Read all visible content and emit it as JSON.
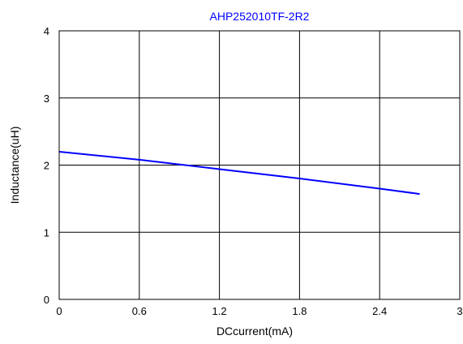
{
  "chart_data": {
    "type": "line",
    "title": "AHP252010TF-2R2",
    "xlabel": "DCcurrent(mA)",
    "ylabel": "Inductance(uH)",
    "xlim": [
      0,
      3
    ],
    "ylim": [
      0,
      4
    ],
    "xticks": [
      0,
      0.6,
      1.2,
      1.8,
      2.4,
      3
    ],
    "xtick_labels": [
      "0",
      "0.6",
      "1.2",
      "1.8",
      "2.4",
      "3"
    ],
    "yticks": [
      0,
      1,
      2,
      3,
      4
    ],
    "ytick_labels": [
      "0",
      "1",
      "2",
      "3",
      "4"
    ],
    "grid": true,
    "legend": "none",
    "series": [
      {
        "color": "#0000ff",
        "x": [
          0,
          0.6,
          1.2,
          1.8,
          2.4,
          2.7
        ],
        "y": [
          2.2,
          2.08,
          1.94,
          1.8,
          1.65,
          1.57
        ]
      }
    ],
    "colors": {
      "title": "#0000ff",
      "line": "#0000ff",
      "grid": "#000000",
      "text": "#000000"
    }
  }
}
